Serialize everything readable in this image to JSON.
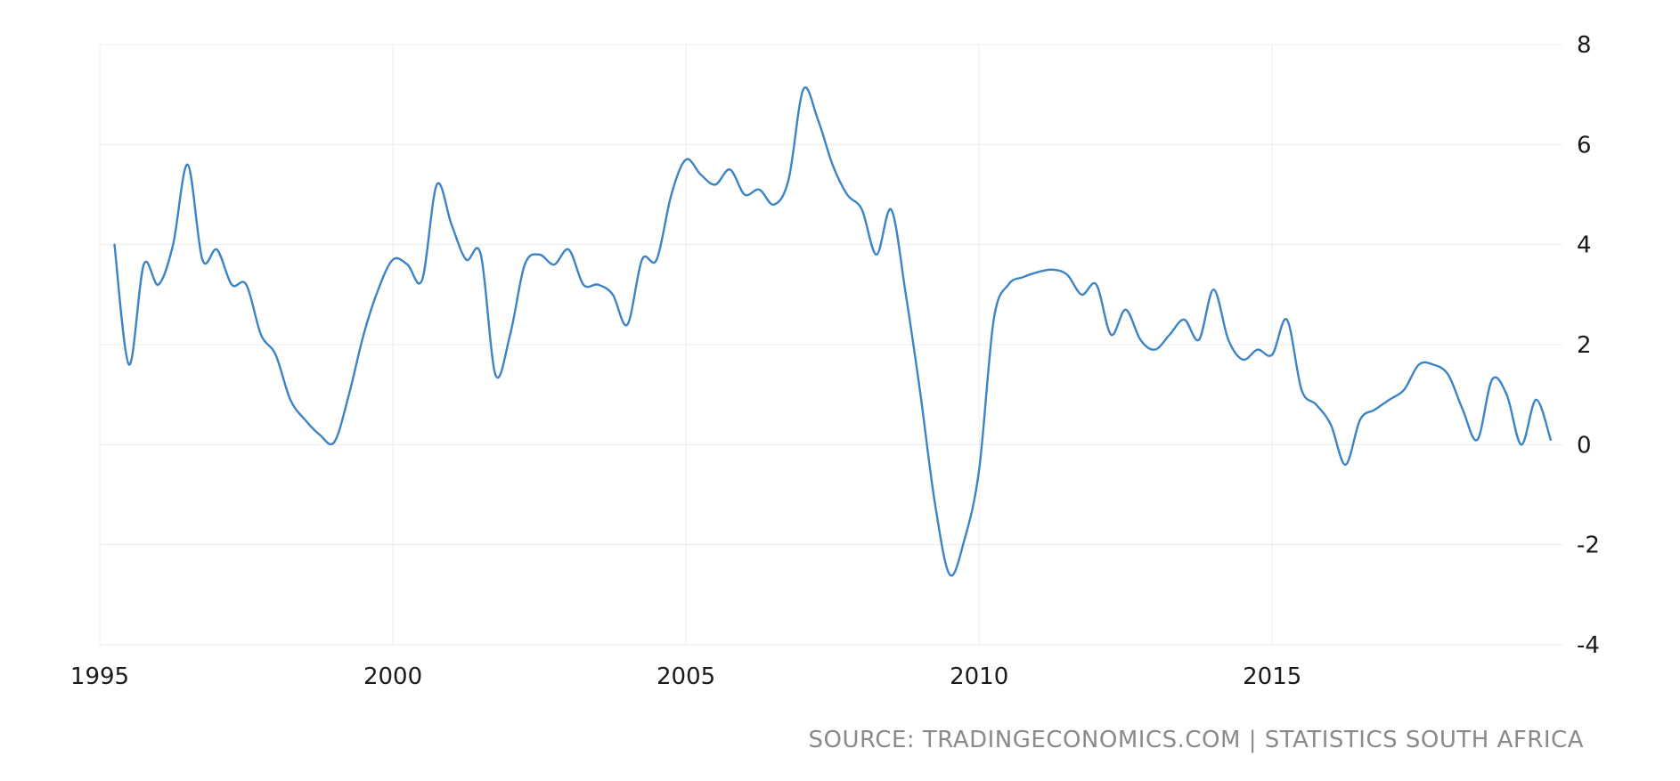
{
  "chart_data": {
    "type": "line",
    "title": "",
    "xlabel": "",
    "ylabel": "",
    "xlim": [
      1995,
      2020
    ],
    "ylim": [
      -4,
      8
    ],
    "x_ticks": [
      "1995",
      "2000",
      "2005",
      "2010",
      "2015"
    ],
    "y_ticks": [
      "8",
      "6",
      "4",
      "2",
      "0",
      "-2",
      "-4"
    ],
    "grid": true,
    "y_axis_side": "right",
    "line_color": "#3c84c6",
    "series": [
      {
        "x": [
          1995.25,
          1995.5,
          1995.75,
          1996.0,
          1996.25,
          1996.5,
          1996.75,
          1997.0,
          1997.25,
          1997.5,
          1997.75,
          1998.0,
          1998.25,
          1998.5,
          1998.75,
          1999.0,
          1999.25,
          1999.5,
          1999.75,
          2000.0,
          2000.25,
          2000.5,
          2000.75,
          2001.0,
          2001.25,
          2001.5,
          2001.75,
          2002.0,
          2002.25,
          2002.5,
          2002.75,
          2003.0,
          2003.25,
          2003.5,
          2003.75,
          2004.0,
          2004.25,
          2004.5,
          2004.75,
          2005.0,
          2005.25,
          2005.5,
          2005.75,
          2006.0,
          2006.25,
          2006.5,
          2006.75,
          2007.0,
          2007.25,
          2007.5,
          2007.75,
          2008.0,
          2008.25,
          2008.5,
          2008.75,
          2009.0,
          2009.25,
          2009.5,
          2009.75,
          2010.0,
          2010.25,
          2010.5,
          2010.75,
          2011.0,
          2011.25,
          2011.5,
          2011.75,
          2012.0,
          2012.25,
          2012.5,
          2012.75,
          2013.0,
          2013.25,
          2013.5,
          2013.75,
          2014.0,
          2014.25,
          2014.5,
          2014.75,
          2015.0,
          2015.25,
          2015.5,
          2015.75,
          2016.0,
          2016.25,
          2016.5,
          2016.75,
          2017.0,
          2017.25,
          2017.5,
          2017.75,
          2018.0,
          2018.25,
          2018.5,
          2018.75,
          2019.0,
          2019.25,
          2019.5,
          2019.75
        ],
        "values": [
          4.0,
          1.6,
          3.6,
          3.2,
          4.0,
          5.6,
          3.7,
          3.9,
          3.2,
          3.2,
          2.2,
          1.8,
          0.9,
          0.5,
          0.2,
          0.05,
          1.0,
          2.2,
          3.1,
          3.7,
          3.6,
          3.3,
          5.2,
          4.4,
          3.7,
          3.8,
          1.4,
          2.2,
          3.6,
          3.8,
          3.6,
          3.9,
          3.2,
          3.2,
          3.0,
          2.4,
          3.7,
          3.7,
          5.0,
          5.7,
          5.4,
          5.2,
          5.5,
          5.0,
          5.1,
          4.8,
          5.3,
          7.1,
          6.5,
          5.6,
          5.0,
          4.7,
          3.8,
          4.7,
          3.0,
          1.0,
          -1.2,
          -2.6,
          -1.9,
          -0.5,
          2.5,
          3.2,
          3.35,
          3.45,
          3.5,
          3.4,
          3.0,
          3.2,
          2.2,
          2.7,
          2.1,
          1.9,
          2.2,
          2.5,
          2.1,
          3.1,
          2.1,
          1.7,
          1.9,
          1.8,
          2.5,
          1.1,
          0.8,
          0.4,
          -0.4,
          0.5,
          0.7,
          0.9,
          1.1,
          1.6,
          1.6,
          1.4,
          0.7,
          0.1,
          1.3,
          1.0,
          0.0,
          0.9,
          0.1
        ]
      }
    ],
    "source": "SOURCE: TRADINGECONOMICS.COM | STATISTICS SOUTH AFRICA"
  }
}
